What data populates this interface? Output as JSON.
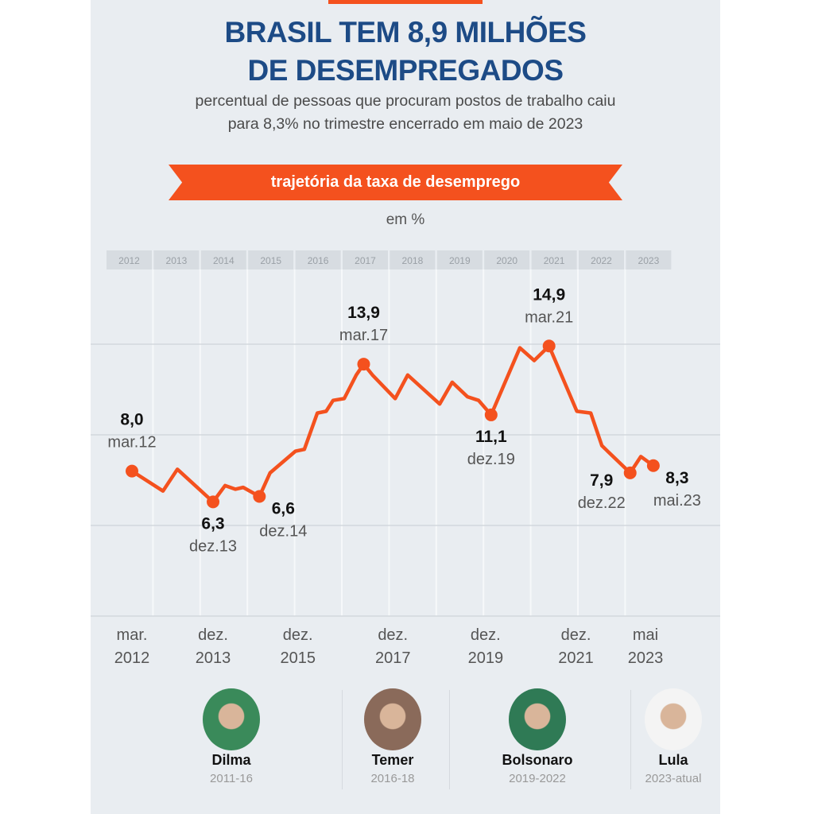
{
  "header": {
    "title_line1": "BRASIL TEM 8,9 MILHÕES",
    "title_line2": "DE DESEMPREGADOS",
    "subtitle_line1": "percentual de pessoas que procuram postos de trabalho caiu",
    "subtitle_line2": "para 8,3% no trimestre encerrado em maio de 2023",
    "ribbon": "trajetória da taxa de desemprego",
    "unit": "em %"
  },
  "colors": {
    "line": "#f4511e",
    "title": "#1d4b86",
    "background": "#e9edf1"
  },
  "chart_data": {
    "type": "line",
    "title": "trajetória da taxa de desemprego",
    "ylabel": "em %",
    "ylim": [
      0,
      15
    ],
    "grid_y": [
      0,
      5,
      10,
      15
    ],
    "year_band": [
      "2012",
      "2013",
      "2014",
      "2015",
      "2016",
      "2017",
      "2018",
      "2019",
      "2020",
      "2021",
      "2022",
      "2023"
    ],
    "x_tick_labels": [
      {
        "t": 2012.17,
        "line1": "mar.",
        "line2": "2012"
      },
      {
        "t": 2013.92,
        "line1": "dez.",
        "line2": "2013"
      },
      {
        "t": 2015.75,
        "line1": "dez.",
        "line2": "2015"
      },
      {
        "t": 2017.8,
        "line1": "dez.",
        "line2": "2017"
      },
      {
        "t": 2019.8,
        "line1": "dez.",
        "line2": "2019"
      },
      {
        "t": 2021.75,
        "line1": "dez.",
        "line2": "2021"
      },
      {
        "t": 2023.25,
        "line1": "mai",
        "line2": "2023"
      }
    ],
    "series": [
      {
        "name": "taxa de desemprego",
        "t": [
          2012.17,
          2012.84,
          2013.15,
          2013.92,
          2014.18,
          2014.4,
          2014.57,
          2014.92,
          2015.15,
          2015.7,
          2015.89,
          2016.17,
          2016.36,
          2016.51,
          2016.75,
          2017.01,
          2017.17,
          2017.36,
          2017.85,
          2018.12,
          2018.81,
          2019.08,
          2019.41,
          2019.65,
          2019.92,
          2020.54,
          2020.85,
          2021.17,
          2021.77,
          2022.07,
          2022.31,
          2022.92,
          2023.15,
          2023.42
        ],
        "values": [
          8.0,
          6.9,
          8.1,
          6.3,
          7.2,
          7.0,
          7.1,
          6.6,
          7.9,
          9.1,
          9.2,
          11.2,
          11.3,
          11.9,
          12.0,
          13.3,
          13.9,
          13.3,
          12.0,
          13.3,
          11.7,
          12.9,
          12.1,
          11.9,
          11.1,
          14.8,
          14.1,
          14.9,
          11.3,
          11.2,
          9.4,
          7.9,
          8.8,
          8.3
        ]
      }
    ],
    "annotations": [
      {
        "t": 2012.17,
        "value": 8.0,
        "value_label": "8,0",
        "date_label": "mar.12",
        "pos": "above"
      },
      {
        "t": 2013.92,
        "value": 6.3,
        "value_label": "6,3",
        "date_label": "dez.13",
        "pos": "below"
      },
      {
        "t": 2014.92,
        "value": 6.6,
        "value_label": "6,6",
        "date_label": "dez.14",
        "pos": "below-right"
      },
      {
        "t": 2017.17,
        "value": 13.9,
        "value_label": "13,9",
        "date_label": "mar.17",
        "pos": "above"
      },
      {
        "t": 2019.92,
        "value": 11.1,
        "value_label": "11,1",
        "date_label": "dez.19",
        "pos": "below"
      },
      {
        "t": 2021.17,
        "value": 14.9,
        "value_label": "14,9",
        "date_label": "mar.21",
        "pos": "above"
      },
      {
        "t": 2022.92,
        "value": 7.9,
        "value_label": "7,9",
        "date_label": "dez.22",
        "pos": "below-left"
      },
      {
        "t": 2023.42,
        "value": 8.3,
        "value_label": "8,3",
        "date_label": "mai.23",
        "pos": "below-right"
      }
    ]
  },
  "presidents": [
    {
      "name": "Dilma",
      "term": "2011-16",
      "photo_color": "#3a8a5a"
    },
    {
      "name": "Temer",
      "term": "2016-18",
      "photo_color": "#8a6a5a"
    },
    {
      "name": "Bolsonaro",
      "term": "2019-2022",
      "photo_color": "#2f7a55"
    },
    {
      "name": "Lula",
      "term": "2023-atual",
      "photo_color": "#f4f4f4"
    }
  ]
}
